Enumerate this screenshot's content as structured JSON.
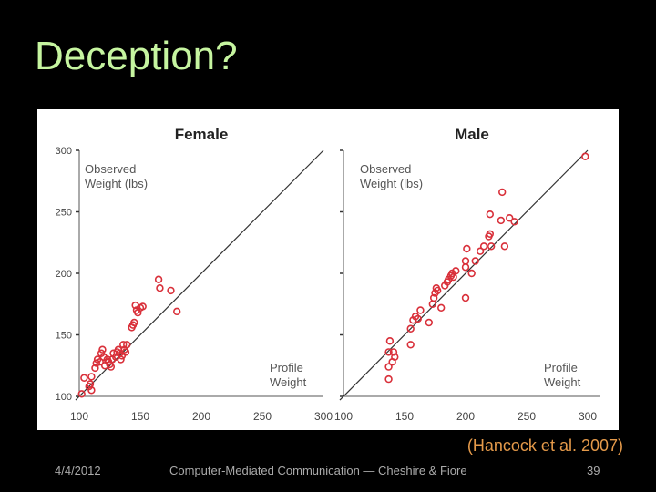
{
  "slide": {
    "title": "Deception?",
    "citation": "(Hancock et al. 2007)",
    "footer_date": "4/4/2012",
    "footer_center": "Computer-Mediated Communication — Cheshire & Fiore",
    "page_number": "39"
  },
  "colors": {
    "title": "#c6f5a0",
    "citation": "#e59a4a",
    "point": "#d9303a",
    "line": "#333333"
  },
  "chart_data": [
    {
      "type": "scatter",
      "title": "Female",
      "xlabel": "Profile Weight",
      "ylabel": "Observed Weight (lbs)",
      "xlim": [
        100,
        300
      ],
      "ylim": [
        100,
        300
      ],
      "xticks": [
        100,
        150,
        200,
        250,
        300
      ],
      "yticks": [
        100,
        150,
        200,
        250,
        300
      ],
      "reference_line": "y = x",
      "points": [
        [
          102,
          102
        ],
        [
          104,
          115
        ],
        [
          108,
          108
        ],
        [
          109,
          110
        ],
        [
          110,
          116
        ],
        [
          110,
          105
        ],
        [
          113,
          123
        ],
        [
          114,
          127
        ],
        [
          115,
          130
        ],
        [
          117,
          128
        ],
        [
          118,
          135
        ],
        [
          119,
          138
        ],
        [
          120,
          132
        ],
        [
          121,
          125
        ],
        [
          123,
          130
        ],
        [
          124,
          128
        ],
        [
          125,
          126
        ],
        [
          126,
          124
        ],
        [
          127,
          130
        ],
        [
          128,
          135
        ],
        [
          130,
          132
        ],
        [
          131,
          136
        ],
        [
          132,
          138
        ],
        [
          133,
          135
        ],
        [
          134,
          130
        ],
        [
          135,
          133
        ],
        [
          136,
          142
        ],
        [
          137,
          138
        ],
        [
          138,
          136
        ],
        [
          139,
          142
        ],
        [
          143,
          156
        ],
        [
          144,
          158
        ],
        [
          145,
          160
        ],
        [
          146,
          174
        ],
        [
          147,
          170
        ],
        [
          148,
          168
        ],
        [
          150,
          172
        ],
        [
          152,
          173
        ],
        [
          165,
          195
        ],
        [
          166,
          188
        ],
        [
          175,
          186
        ],
        [
          180,
          169
        ]
      ]
    },
    {
      "type": "scatter",
      "title": "Male",
      "xlabel": "Profile Weight",
      "ylabel": "Observed Weight (lbs)",
      "xlim": [
        100,
        300
      ],
      "ylim": [
        100,
        300
      ],
      "xticks": [
        100,
        150,
        200,
        250,
        300
      ],
      "yticks": [
        100,
        150,
        200,
        250,
        300
      ],
      "reference_line": "y = x",
      "points": [
        [
          137,
          114
        ],
        [
          137,
          124
        ],
        [
          137,
          136
        ],
        [
          138,
          145
        ],
        [
          140,
          128
        ],
        [
          141,
          136
        ],
        [
          142,
          132
        ],
        [
          155,
          142
        ],
        [
          155,
          155
        ],
        [
          157,
          162
        ],
        [
          159,
          165
        ],
        [
          161,
          163
        ],
        [
          163,
          170
        ],
        [
          170,
          160
        ],
        [
          173,
          175
        ],
        [
          174,
          180
        ],
        [
          175,
          184
        ],
        [
          176,
          188
        ],
        [
          177,
          186
        ],
        [
          180,
          172
        ],
        [
          183,
          190
        ],
        [
          185,
          193
        ],
        [
          186,
          195
        ],
        [
          188,
          198
        ],
        [
          189,
          200
        ],
        [
          190,
          197
        ],
        [
          192,
          202
        ],
        [
          200,
          180
        ],
        [
          200,
          205
        ],
        [
          200,
          210
        ],
        [
          201,
          220
        ],
        [
          205,
          200
        ],
        [
          208,
          210
        ],
        [
          212,
          218
        ],
        [
          215,
          222
        ],
        [
          219,
          230
        ],
        [
          220,
          248
        ],
        [
          220,
          232
        ],
        [
          221,
          222
        ],
        [
          229,
          243
        ],
        [
          230,
          266
        ],
        [
          232,
          222
        ],
        [
          236,
          245
        ],
        [
          240,
          242
        ],
        [
          298,
          295
        ]
      ]
    }
  ]
}
